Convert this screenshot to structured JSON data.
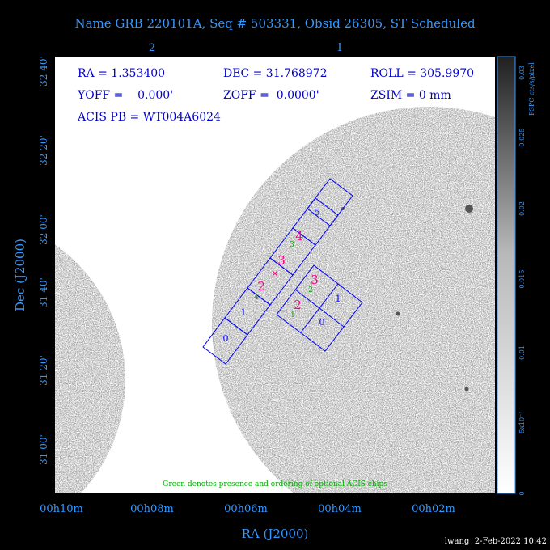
{
  "header": {
    "title": "Name GRB 220101A, Seq # 503331, Obsid 26305, ST Scheduled"
  },
  "params": {
    "ra": "RA = 1.353400",
    "dec": "DEC = 31.768972",
    "roll": "ROLL = 305.9970",
    "yoff": "YOFF =    0.000'",
    "zoff": "ZOFF =  0.0000'",
    "zsim": "ZSIM = 0 mm",
    "acis_pb": "ACIS PB = WT004A6024"
  },
  "top_axis_ticks": [
    "2",
    "1"
  ],
  "y_axis": {
    "label": "Dec (J2000)",
    "ticks": [
      "32 40'",
      "32 20'",
      "32 00'",
      "31 40'",
      "31 20'",
      "31 00'"
    ]
  },
  "x_axis": {
    "label": "RA (J2000)",
    "ticks": [
      "00h10m",
      "00h08m",
      "00h06m",
      "00h04m",
      "00h02m"
    ]
  },
  "colorbar": {
    "title": "PSPC cts/s/pixel",
    "ticks": [
      "0.03",
      "0.025",
      "0.02",
      "0.015",
      "0.01",
      "5x10⁻³",
      "0"
    ]
  },
  "chips": {
    "array_i": [
      {
        "label": "0",
        "color": "#0000ff"
      },
      {
        "label": "1",
        "color": "#0000ff"
      },
      {
        "label": "2",
        "color": "#ff0088"
      },
      {
        "label": "3",
        "color": "#ff0088"
      },
      {
        "label": "4",
        "color": "#ff0088"
      },
      {
        "label": "5",
        "color": "#0000ff"
      }
    ],
    "array_s_order": [
      "4",
      "3"
    ],
    "array_2x2": [
      {
        "label": "3",
        "color": "#ff0088"
      },
      {
        "label": "2",
        "color": "#ff0088"
      },
      {
        "label": "1",
        "color": "#0000ff"
      },
      {
        "label": "0",
        "color": "#0000ff"
      }
    ],
    "array_2x2_order": [
      "2",
      "1"
    ]
  },
  "note": "Green denotes presence and ordering of optional ACIS chips",
  "footer": "lwang  2-Feb-2022 10:42",
  "colors": {
    "frame_text": "#3399ff",
    "chip_outline": "#0000ff",
    "chip_primary": "#ff0088",
    "chip_optional": "#00aa00",
    "param_text": "#0000cc"
  }
}
